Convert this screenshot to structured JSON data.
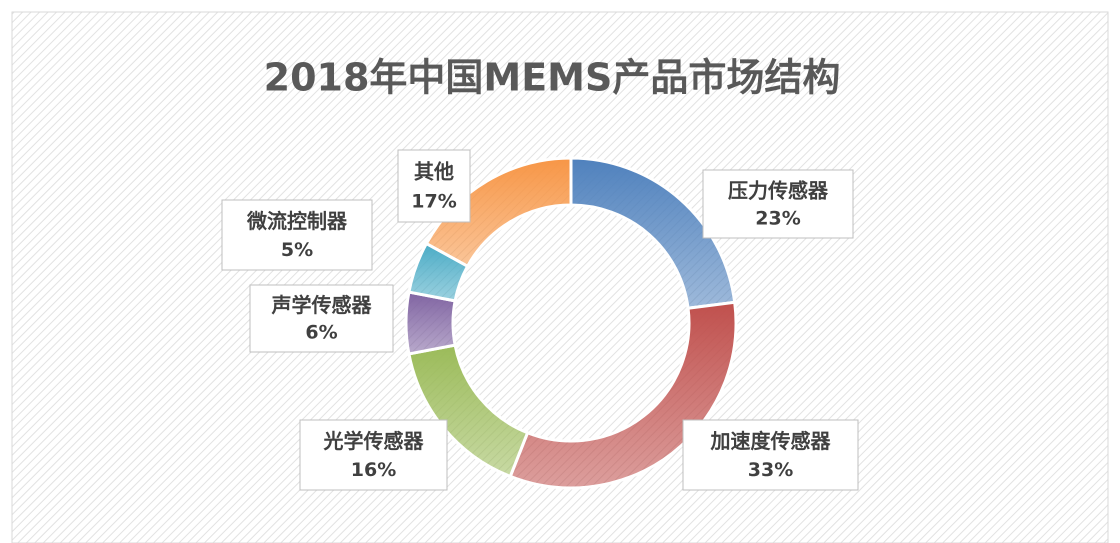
{
  "chart_data": {
    "type": "donut",
    "title": "2018年中国MEMS产品市场结构",
    "categories": [
      "压力传感器",
      "加速度传感器",
      "光学传感器",
      "声学传感器",
      "微流控制器",
      "其他"
    ],
    "values": [
      23,
      33,
      16,
      6,
      5,
      17
    ],
    "value_labels": [
      "23%",
      "33%",
      "16%",
      "6%",
      "5%",
      "17%"
    ],
    "colors": [
      "#4f81bd",
      "#c0504d",
      "#9bbb59",
      "#8064a2",
      "#4bacc6",
      "#f79646"
    ]
  }
}
